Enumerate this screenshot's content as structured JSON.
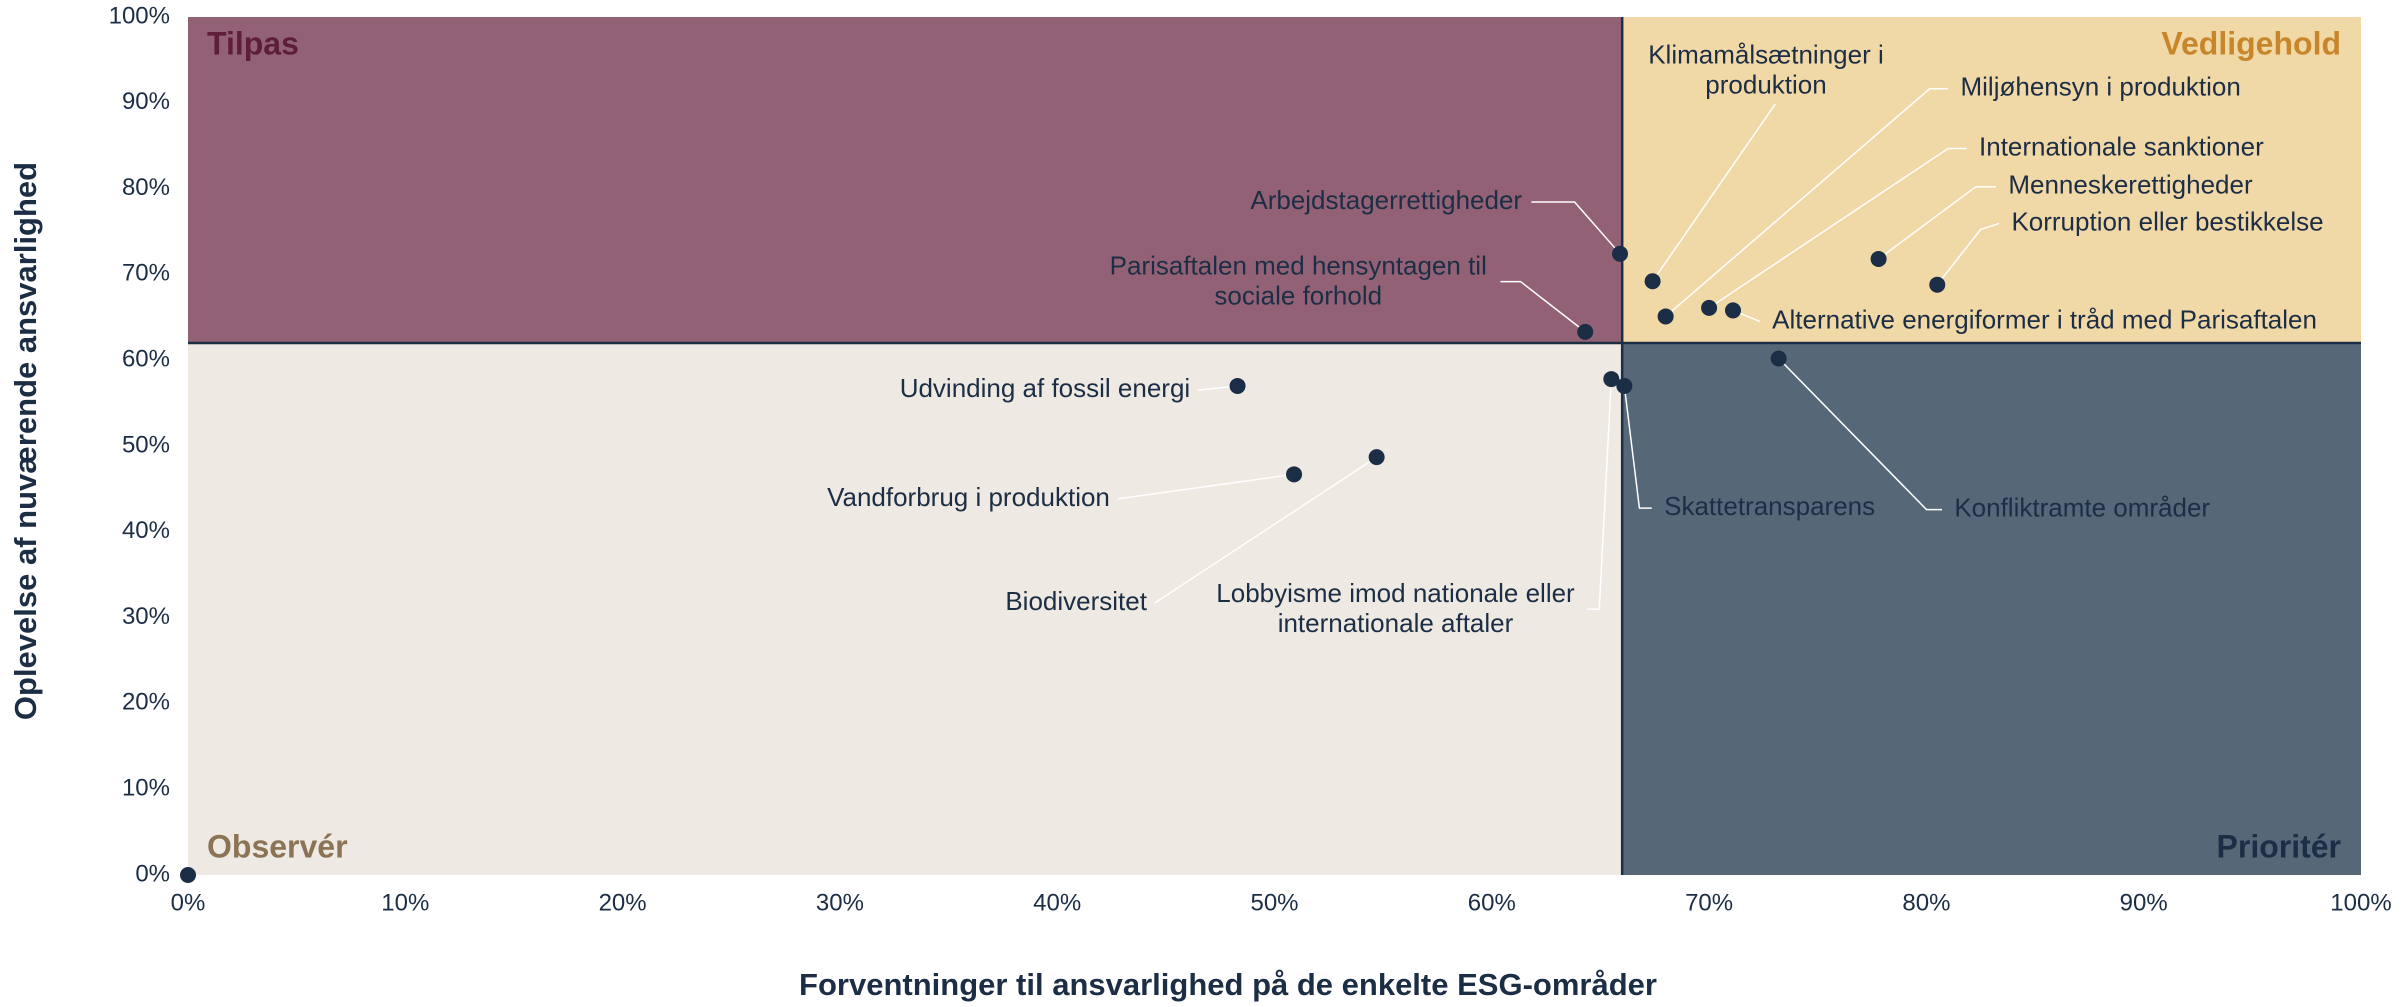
{
  "chart_data": {
    "type": "scatter",
    "x_label": "Forventninger til ansvarlighed på de enkelte ESG-områder",
    "y_label": "Oplevelse af nuværende ansvarlighed",
    "xlim": [
      0,
      100
    ],
    "ylim": [
      0,
      100
    ],
    "xticks": [
      {
        "value": 0,
        "label": "0%"
      },
      {
        "value": 10,
        "label": "10%"
      },
      {
        "value": 20,
        "label": "20%"
      },
      {
        "value": 30,
        "label": "30%"
      },
      {
        "value": 40,
        "label": "40%"
      },
      {
        "value": 50,
        "label": "50%"
      },
      {
        "value": 60,
        "label": "60%"
      },
      {
        "value": 70,
        "label": "70%"
      },
      {
        "value": 80,
        "label": "80%"
      },
      {
        "value": 90,
        "label": "90%"
      },
      {
        "value": 100,
        "label": "100%"
      }
    ],
    "yticks": [
      {
        "value": 0,
        "label": "0%"
      },
      {
        "value": 10,
        "label": "10%"
      },
      {
        "value": 20,
        "label": "20%"
      },
      {
        "value": 30,
        "label": "30%"
      },
      {
        "value": 40,
        "label": "40%"
      },
      {
        "value": 50,
        "label": "50%"
      },
      {
        "value": 60,
        "label": "60%"
      },
      {
        "value": 70,
        "label": "70%"
      },
      {
        "value": 80,
        "label": "80%"
      },
      {
        "value": 90,
        "label": "90%"
      },
      {
        "value": 100,
        "label": "100%"
      }
    ],
    "xsplit": 66,
    "ysplit": 62,
    "split_color": "#1c2e45",
    "point_color": "#1c2e45",
    "quadrants": [
      {
        "name": "Tilpas",
        "position": "top-left",
        "color": "#936175",
        "label_color": "#5e1e3a"
      },
      {
        "name": "Vedligehold",
        "position": "top-right",
        "color": "#f1d8a7",
        "label_color": "#c8862a"
      },
      {
        "name": "Observér",
        "position": "bottom-left",
        "color": "#eee9e2",
        "label_color": "#8b7355"
      },
      {
        "name": "Prioritér",
        "position": "bottom-right",
        "color": "#566878",
        "label_color": "#1c2e45"
      }
    ],
    "points": [
      {
        "label": [
          "Arbejdstagerrettigheder"
        ],
        "x": 65.9,
        "y": 72.4
      },
      {
        "label": [
          "Klimamålsætninger i",
          "produktion"
        ],
        "x": 67.4,
        "y": 69.2
      },
      {
        "label": [
          "Miljøhensyn i produktion"
        ],
        "x": 68.0,
        "y": 65.1
      },
      {
        "label": [
          "Internationale sanktioner"
        ],
        "x": 70.0,
        "y": 66.1
      },
      {
        "label": [
          "Menneskerettigheder"
        ],
        "x": 77.8,
        "y": 71.8
      },
      {
        "label": [
          "Korruption eller bestikkelse"
        ],
        "x": 80.5,
        "y": 68.8
      },
      {
        "label": [
          "Alternative energiformer i tråd med Parisaftalen"
        ],
        "x": 71.1,
        "y": 65.8
      },
      {
        "label": [
          "Parisaftalen med hensyntagen til",
          "sociale forhold"
        ],
        "x": 64.3,
        "y": 63.3
      },
      {
        "label": [
          "Udvinding af fossil energi"
        ],
        "x": 48.3,
        "y": 57.0
      },
      {
        "label": [
          "Vandforbrug i produktion"
        ],
        "x": 50.9,
        "y": 46.7
      },
      {
        "label": [
          "Biodiversitet"
        ],
        "x": 54.7,
        "y": 48.7
      },
      {
        "label": [
          "Lobbyisme imod nationale eller",
          "internationale aftaler"
        ],
        "x": 65.5,
        "y": 57.8
      },
      {
        "label": [
          "Skattetransparens"
        ],
        "x": 66.1,
        "y": 57.0
      },
      {
        "label": [
          "Konfliktramte områder"
        ],
        "x": 73.2,
        "y": 60.2
      },
      {
        "x": 0,
        "y": 0
      }
    ]
  }
}
